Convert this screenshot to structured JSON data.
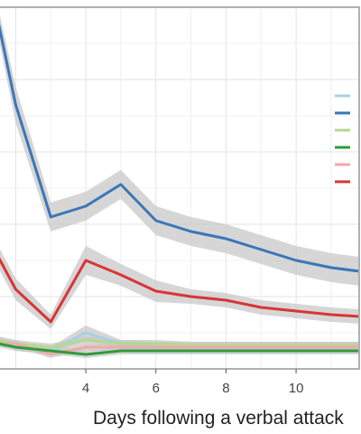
{
  "chart_data": {
    "type": "line",
    "xlabel": "Days following a verbal attack",
    "ylabel": "",
    "title": "",
    "xlim": [
      1.5,
      11.8
    ],
    "ylim": [
      0,
      100
    ],
    "x_ticks": [
      4,
      6,
      8,
      10
    ],
    "grid": true,
    "legend_placement": "right",
    "series": [
      {
        "color": "#3a77b7",
        "x": [
          1.5,
          2,
          3,
          4,
          5,
          6,
          7,
          8,
          9,
          10,
          11,
          11.8
        ],
        "values": [
          96,
          73,
          42,
          45,
          51,
          41,
          38,
          36,
          33,
          30,
          28,
          27
        ],
        "band": [
          4,
          5,
          4,
          4,
          4,
          4,
          4,
          4,
          4,
          4,
          4,
          4
        ],
        "legend_mark": true
      },
      {
        "color": "#d93535",
        "x": [
          1.5,
          2,
          3,
          4,
          5,
          6,
          7,
          8,
          9,
          10,
          11,
          11.8
        ],
        "values": [
          31,
          22,
          13,
          30,
          26,
          21.5,
          20,
          19,
          17,
          16,
          15,
          14.5
        ],
        "band": [
          3,
          3,
          2,
          4,
          3,
          3,
          2,
          2,
          2,
          2,
          2,
          2
        ],
        "legend_mark": true
      },
      {
        "color": "#a8cfe6",
        "x": [
          1.5,
          2,
          3,
          4,
          5,
          6,
          7,
          8,
          9,
          10,
          11,
          11.8
        ],
        "values": [
          8,
          6,
          5,
          10,
          7,
          6.5,
          6.5,
          6.5,
          6.5,
          6.5,
          6.5,
          6.5
        ],
        "band": [
          1,
          1,
          1,
          2,
          1,
          1,
          1,
          1,
          1,
          1,
          1,
          1
        ],
        "legend_mark": true
      },
      {
        "color": "#b5d98c",
        "x": [
          1.5,
          2,
          3,
          4,
          5,
          6,
          7,
          8,
          9,
          10,
          11,
          11.8
        ],
        "values": [
          8,
          7,
          6,
          8,
          7,
          7,
          6.5,
          6.5,
          6.5,
          6.5,
          6.5,
          6.5
        ],
        "band": [
          1,
          1,
          1,
          1,
          1,
          1,
          1,
          1,
          1,
          1,
          1,
          1
        ],
        "legend_mark": true
      },
      {
        "color": "#f0a8a8",
        "x": [
          1.5,
          2,
          3,
          4,
          5,
          6,
          7,
          8,
          9,
          10,
          11,
          11.8
        ],
        "values": [
          7,
          7,
          4,
          6,
          6,
          6,
          6,
          6,
          6,
          6,
          6,
          6
        ],
        "band": [
          1,
          1,
          1,
          1,
          1,
          1,
          1,
          1,
          1,
          1,
          1,
          1
        ],
        "legend_mark": true
      },
      {
        "color": "#2e9c3a",
        "x": [
          1.5,
          2,
          3,
          4,
          5,
          6,
          7,
          8,
          9,
          10,
          11,
          11.8
        ],
        "values": [
          7,
          6,
          5,
          4,
          5,
          5,
          5,
          5,
          5,
          5,
          5,
          5
        ],
        "band": [
          1,
          1,
          1,
          1,
          1,
          1,
          1,
          1,
          1,
          1,
          1,
          1
        ],
        "legend_mark": true
      }
    ],
    "legend_order": [
      2,
      0,
      3,
      5,
      4,
      1
    ]
  },
  "colors": {
    "band_fill": "#c8c8c8",
    "grid_major": "#e3e3e3",
    "grid_minor": "#f0f0f0",
    "panel_border": "#b0b0b0"
  }
}
